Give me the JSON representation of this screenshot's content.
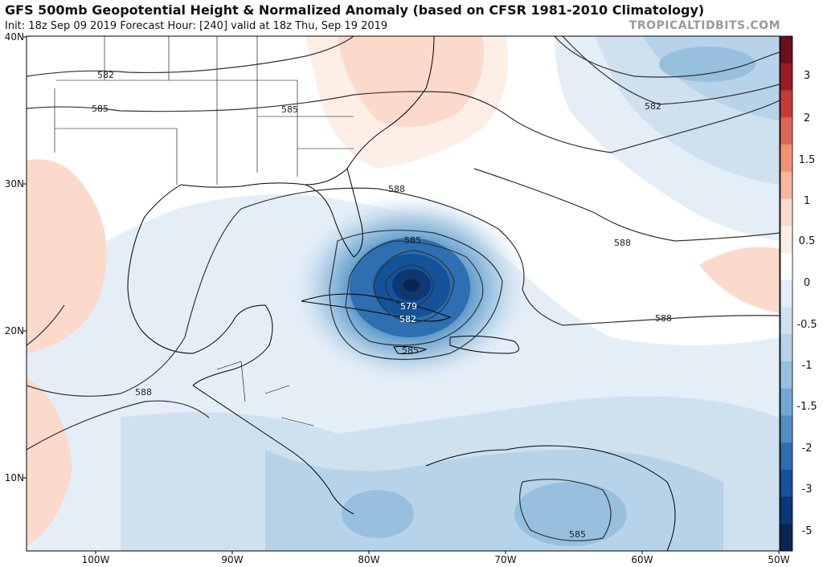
{
  "header": {
    "title": "GFS 500mb Geopotential Height & Normalized Anomaly (based on CFSR 1981-2010 Climatology)",
    "subtitle": "Init: 18z Sep 09 2019   Forecast Hour: [240]   valid at 18z Thu, Sep 19 2019",
    "credit": "TROPICALTIDBITS.COM"
  },
  "axes": {
    "lat_labels": [
      "40N",
      "30N",
      "20N",
      "10N"
    ],
    "lon_labels": [
      "100W",
      "90W",
      "80W",
      "70W",
      "60W",
      "50W"
    ]
  },
  "colorbar": {
    "labels": [
      "3",
      "2",
      "1.5",
      "1",
      "0.5",
      "0",
      "-0.5",
      "-1",
      "-1.5",
      "-2",
      "-3",
      "-5"
    ],
    "colors": [
      "#6b0f1a",
      "#9e1a22",
      "#c73b37",
      "#de6654",
      "#ee9275",
      "#f6b79c",
      "#fbdacb",
      "#fdeee6",
      "#ffffff",
      "#e4eef7",
      "#cfe0ef",
      "#b7d3e9",
      "#97c0df",
      "#72a8d2",
      "#4f8dc3",
      "#2d6fb0",
      "#14539a",
      "#0a3878",
      "#0a2555"
    ]
  },
  "contours": [
    {
      "label": "582"
    },
    {
      "label": "585"
    },
    {
      "label": "585"
    },
    {
      "label": "582"
    },
    {
      "label": "588"
    },
    {
      "label": "588"
    },
    {
      "label": "588"
    },
    {
      "label": "585"
    },
    {
      "label": "579"
    },
    {
      "label": "582"
    },
    {
      "label": "585"
    },
    {
      "label": "588"
    },
    {
      "label": "585"
    }
  ]
}
